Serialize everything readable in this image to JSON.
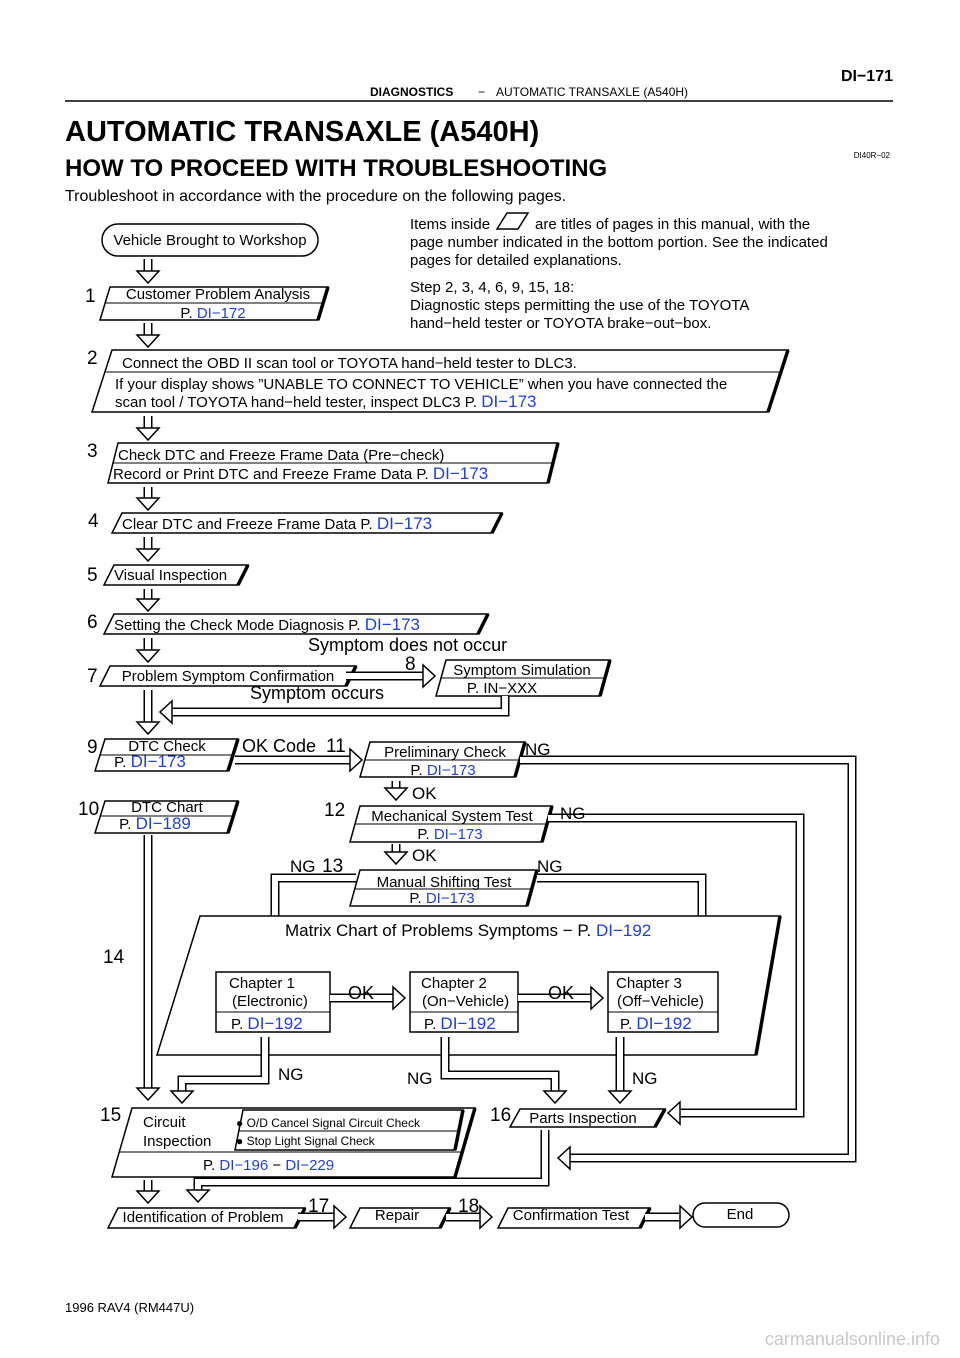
{
  "header": {
    "section": "DIAGNOSTICS",
    "dash": "−",
    "subsection": "AUTOMATIC TRANSAXLE (A540H)",
    "page": "DI−171"
  },
  "title": "AUTOMATIC TRANSAXLE (A540H)",
  "heading": "HOW TO PROCEED WITH TROUBLESHOOTING",
  "doc_code": "DI40R−02",
  "intro": "Troubleshoot in accordance with the procedure on the following pages.",
  "notes": [
    [
      "Items inside",
      "are titles of pages in this manual, with the",
      "page number indicated in the bottom portion. See the indicated",
      "pages for detailed explanations."
    ],
    [
      "Step 2, 3, 4, 6, 9, 15, 18:",
      "Diagnostic steps permitting the use of the TOYOTA",
      "hand−held tester or TOYOTA brake−out−box."
    ]
  ],
  "start": "Vehicle Brought to Workshop",
  "steps": [
    {
      "number": "1",
      "title": "Customer Problem Analysis",
      "ref_prefix": "P.",
      "ref": "DI−172"
    },
    {
      "number": "2",
      "title": "Connect the OBD II scan tool or TOYOTA hand−held tester to DLC3.",
      "detail": [
        "If your display shows ”UNABLE TO CONNECT TO VEHICLE” when you have connected the",
        "scan tool / TOYOTA hand−held tester, inspect DLC3 P."
      ],
      "ref": "DI−173"
    },
    {
      "number": "3",
      "title": "Check DTC and Freeze Frame Data (Pre−check)",
      "detail": "Record or Print DTC and Freeze Frame Data P.",
      "ref": "DI−173"
    },
    {
      "number": "4",
      "title": "Clear DTC and Freeze Frame Data P.",
      "ref": "DI−173"
    },
    {
      "number": "5",
      "title": "Visual Inspection"
    },
    {
      "number": "6",
      "title": "Setting the Check Mode Diagnosis P.",
      "ref": "DI−173"
    },
    {
      "number": "7",
      "title": "Problem Symptom Confirmation"
    },
    {
      "number": "8",
      "title": "Symptom Simulation",
      "ref_line": "P. IN−XXX"
    },
    {
      "number": "9",
      "title": "DTC Check",
      "ref_prefix": "P.",
      "ref": "DI−173"
    },
    {
      "number": "10",
      "title": "DTC Chart",
      "ref_prefix": "P.",
      "ref": "DI−189"
    },
    {
      "number": "11",
      "title": "Preliminary Check",
      "ref_prefix": "P.",
      "ref": "DI−173"
    },
    {
      "number": "12",
      "title": "Mechanical System Test",
      "ref_prefix": "P.",
      "ref": "DI−173"
    },
    {
      "number": "13",
      "title": "Manual Shifting Test",
      "ref_prefix": "P.",
      "ref": "DI−173"
    },
    {
      "number": "14",
      "title": "Matrix Chart of Problems Symptoms − P.",
      "ref": "DI−192",
      "chapters": [
        {
          "title": "Chapter 1",
          "subtitle": "(Electronic)",
          "ref_prefix": "P.",
          "ref": "DI−192"
        },
        {
          "title": "Chapter 2",
          "subtitle": "(On−Vehicle)",
          "ref_prefix": "P.",
          "ref": "DI−192"
        },
        {
          "title": "Chapter 3",
          "subtitle": "(Off−Vehicle)",
          "ref_prefix": "P.",
          "ref": "DI−192"
        }
      ]
    },
    {
      "number": "15",
      "title": [
        "Circuit",
        "Inspection"
      ],
      "checks": [
        "● O/D Cancel Signal Circuit Check",
        "● Stop Light Signal Check"
      ],
      "ref_prefix": "P.",
      "refs": [
        "DI−196",
        "DI−229"
      ],
      "ref_sep": "−"
    },
    {
      "number": "16",
      "title": "Parts Inspection"
    },
    {
      "number": "17",
      "title": "Repair"
    },
    {
      "number": "18",
      "title": "Confirmation Test"
    }
  ],
  "identification": "Identification of Problem",
  "end": "End",
  "labels": {
    "not_occur": "Symptom does not occur",
    "occurs": "Symptom occurs",
    "ok_code": "OK Code",
    "ok": [
      "OK",
      "OK",
      "OK",
      "OK"
    ],
    "ng": [
      "NG",
      "NG",
      "NG",
      "NG",
      "NG",
      "NG",
      "NG"
    ]
  },
  "footer": "1996 RAV4   (RM447U)",
  "watermark": "carmanualsonline.info"
}
